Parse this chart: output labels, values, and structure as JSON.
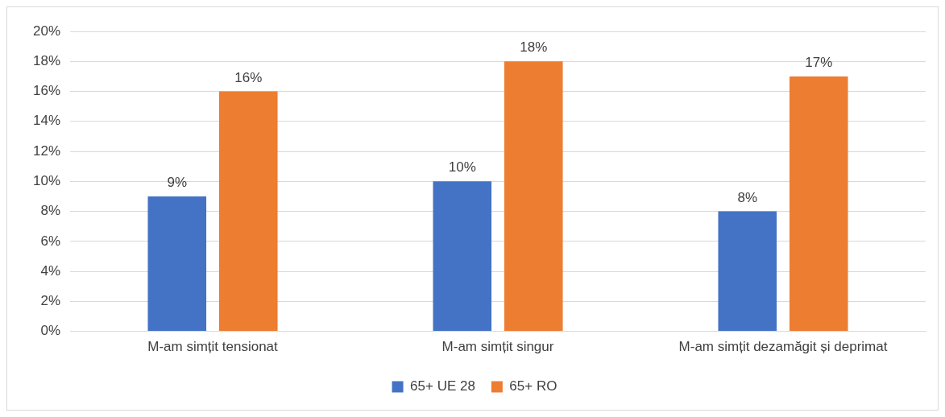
{
  "chart_data": {
    "type": "bar",
    "categories": [
      "M-am simțit tensionat",
      "M-am simțit singur",
      "M-am simțit dezamăgit și deprimat"
    ],
    "series": [
      {
        "name": "65+ UE 28",
        "color": "#4472c4",
        "values": [
          9,
          10,
          8
        ],
        "value_labels": [
          "9%",
          "10%",
          "8%"
        ]
      },
      {
        "name": "65+ RO",
        "color": "#ed7d31",
        "values": [
          16,
          18,
          17
        ],
        "value_labels": [
          "16%",
          "18%",
          "17%"
        ]
      }
    ],
    "ylim": [
      0,
      20
    ],
    "yticks": [
      {
        "value": 0,
        "label": "0%"
      },
      {
        "value": 2,
        "label": "2%"
      },
      {
        "value": 4,
        "label": "4%"
      },
      {
        "value": 6,
        "label": "6%"
      },
      {
        "value": 8,
        "label": "8%"
      },
      {
        "value": 10,
        "label": "10%"
      },
      {
        "value": 12,
        "label": "12%"
      },
      {
        "value": 14,
        "label": "14%"
      },
      {
        "value": 16,
        "label": "16%"
      },
      {
        "value": 18,
        "label": "18%"
      },
      {
        "value": 20,
        "label": "20%"
      }
    ],
    "grid": "y",
    "legend": "bottom"
  }
}
